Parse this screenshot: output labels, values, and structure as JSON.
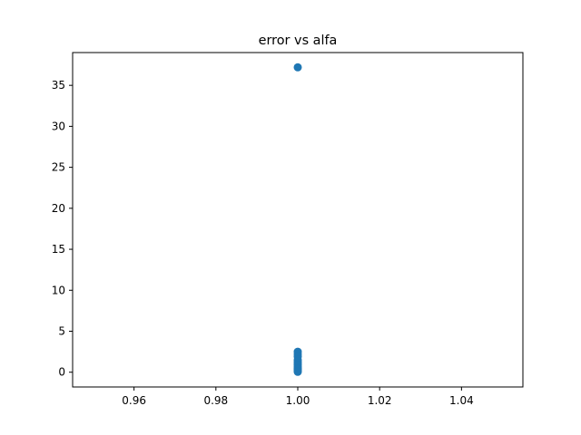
{
  "chart_data": {
    "type": "scatter",
    "title": "error vs alfa",
    "xlabel": "",
    "ylabel": "",
    "xlim": [
      0.945,
      1.055
    ],
    "ylim": [
      -1.8,
      39.0
    ],
    "x_ticks": [
      0.96,
      0.98,
      1.0,
      1.02,
      1.04
    ],
    "x_tick_labels": [
      "0.96",
      "0.98",
      "1.00",
      "1.02",
      "1.04"
    ],
    "y_ticks": [
      0,
      5,
      10,
      15,
      20,
      25,
      30,
      35
    ],
    "y_tick_labels": [
      "0",
      "5",
      "10",
      "15",
      "20",
      "25",
      "30",
      "35"
    ],
    "grid": false,
    "marker_color": "#1f77b4",
    "series": [
      {
        "x": [
          1.0,
          1.0,
          1.0,
          1.0,
          1.0,
          1.0,
          1.0,
          1.0,
          1.0,
          1.0,
          1.0,
          1.0,
          1.0,
          1.0
        ],
        "y": [
          37.2,
          2.5,
          2.2,
          1.9,
          1.5,
          1.3,
          1.1,
          0.9,
          0.7,
          0.5,
          0.4,
          0.3,
          0.15,
          0.05
        ]
      }
    ]
  }
}
